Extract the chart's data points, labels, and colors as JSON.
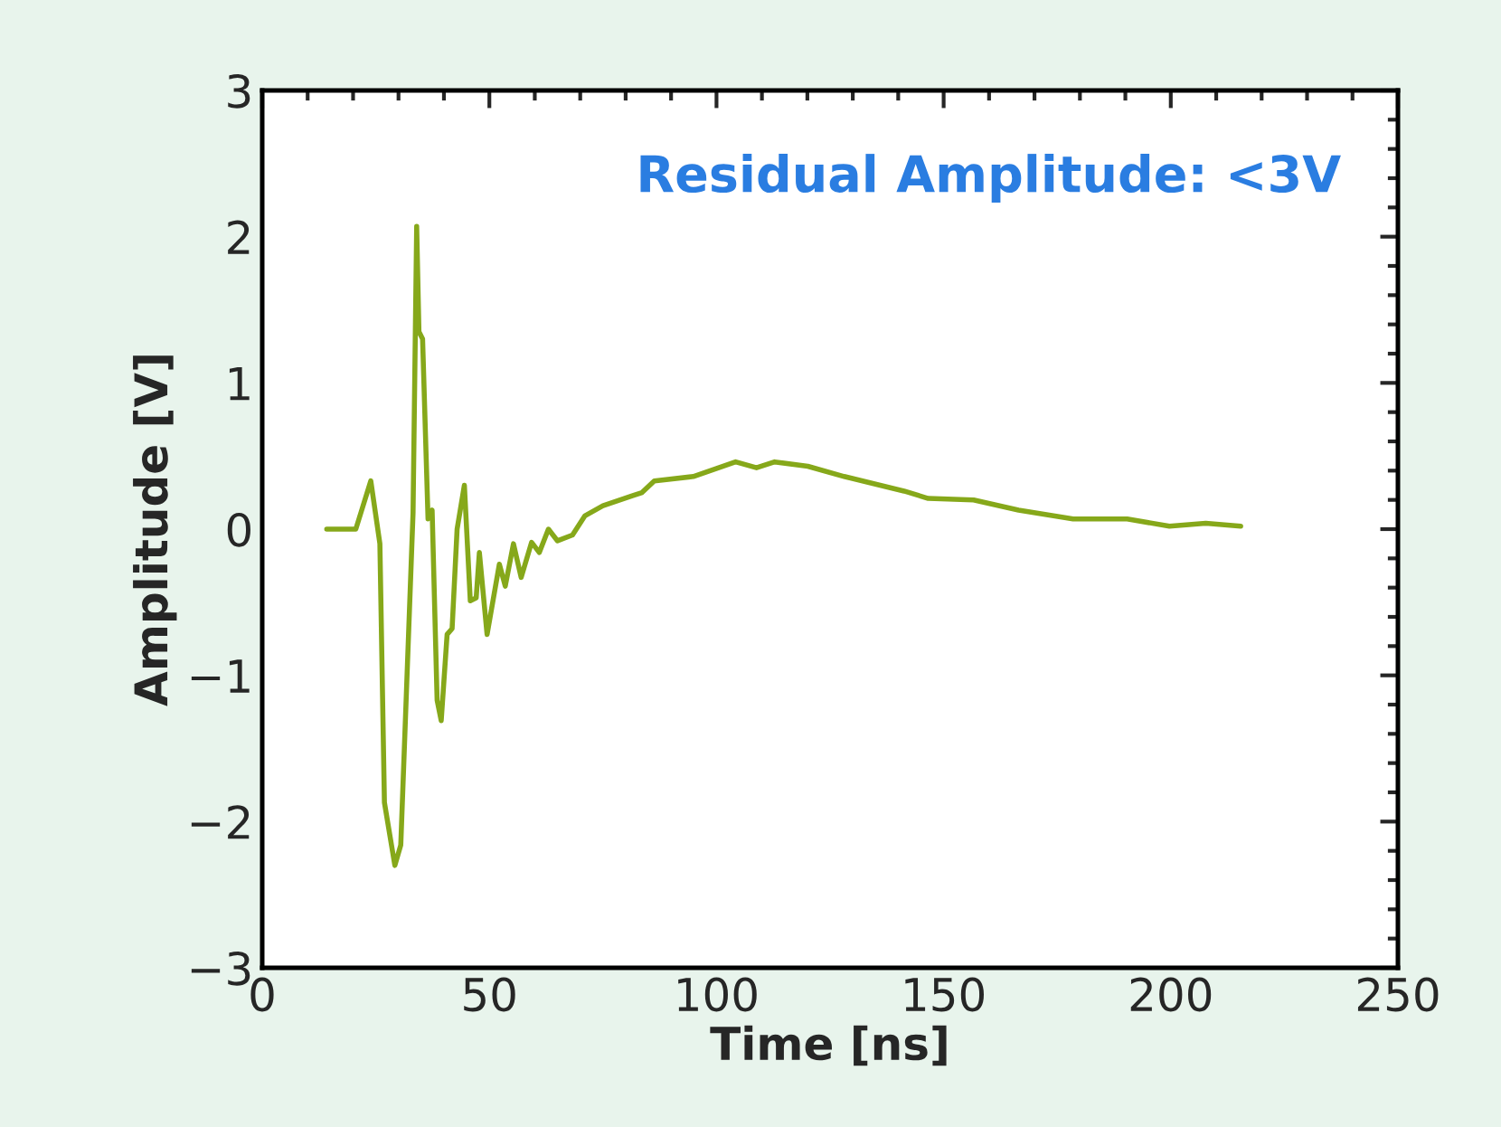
{
  "chart_data": {
    "type": "line",
    "xlabel": "Time [ns]",
    "ylabel": "Amplitude [V]",
    "annotations": [
      "Residual Amplitude: <3V"
    ],
    "xlim": [
      0,
      250
    ],
    "xticks": [
      0,
      50,
      100,
      150,
      200,
      250
    ],
    "ylim": [
      -3,
      3
    ],
    "yticks": [
      {
        "value": -3,
        "label": "−3"
      },
      {
        "value": -2,
        "label": "−2"
      },
      {
        "value": -1,
        "label": "−1"
      },
      0,
      1,
      2,
      3
    ],
    "grid": false,
    "legend": false,
    "marker": "none",
    "line_style": "solid",
    "series": [
      {
        "color": "#86a81a",
        "x": [
          14.2,
          20.6,
          21.9,
          23.9,
          25.9,
          26.9,
          29.2,
          30.5,
          33.2,
          34.0,
          34.5,
          35.3,
          36.5,
          37.4,
          38.5,
          39.4,
          40.7,
          41.8,
          42.9,
          44.5,
          45.8,
          47.1,
          47.8,
          49.5,
          52.2,
          53.5,
          55.3,
          57.0,
          59.3,
          61.0,
          63.0,
          65.0,
          68.3,
          71.0,
          75.0,
          81.6,
          83.6,
          86.3,
          94.9,
          104.2,
          108.8,
          112.8,
          120.1,
          128.1,
          141.3,
          146.6,
          156.6,
          166.5,
          178.5,
          190.4,
          199.7,
          207.7,
          215.4
        ],
        "values": [
          0.0,
          0.0,
          0.13,
          0.33,
          -0.1,
          -1.87,
          -2.3,
          -2.16,
          0.11,
          2.07,
          1.35,
          1.3,
          0.07,
          0.13,
          -1.17,
          -1.31,
          -0.72,
          -0.68,
          0.0,
          0.3,
          -0.49,
          -0.47,
          -0.16,
          -0.72,
          -0.24,
          -0.39,
          -0.1,
          -0.33,
          -0.09,
          -0.16,
          0.0,
          -0.08,
          -0.04,
          0.09,
          0.16,
          0.23,
          0.25,
          0.33,
          0.36,
          0.46,
          0.42,
          0.46,
          0.43,
          0.36,
          0.26,
          0.21,
          0.2,
          0.13,
          0.07,
          0.07,
          0.02,
          0.04,
          0.02
        ]
      }
    ]
  }
}
